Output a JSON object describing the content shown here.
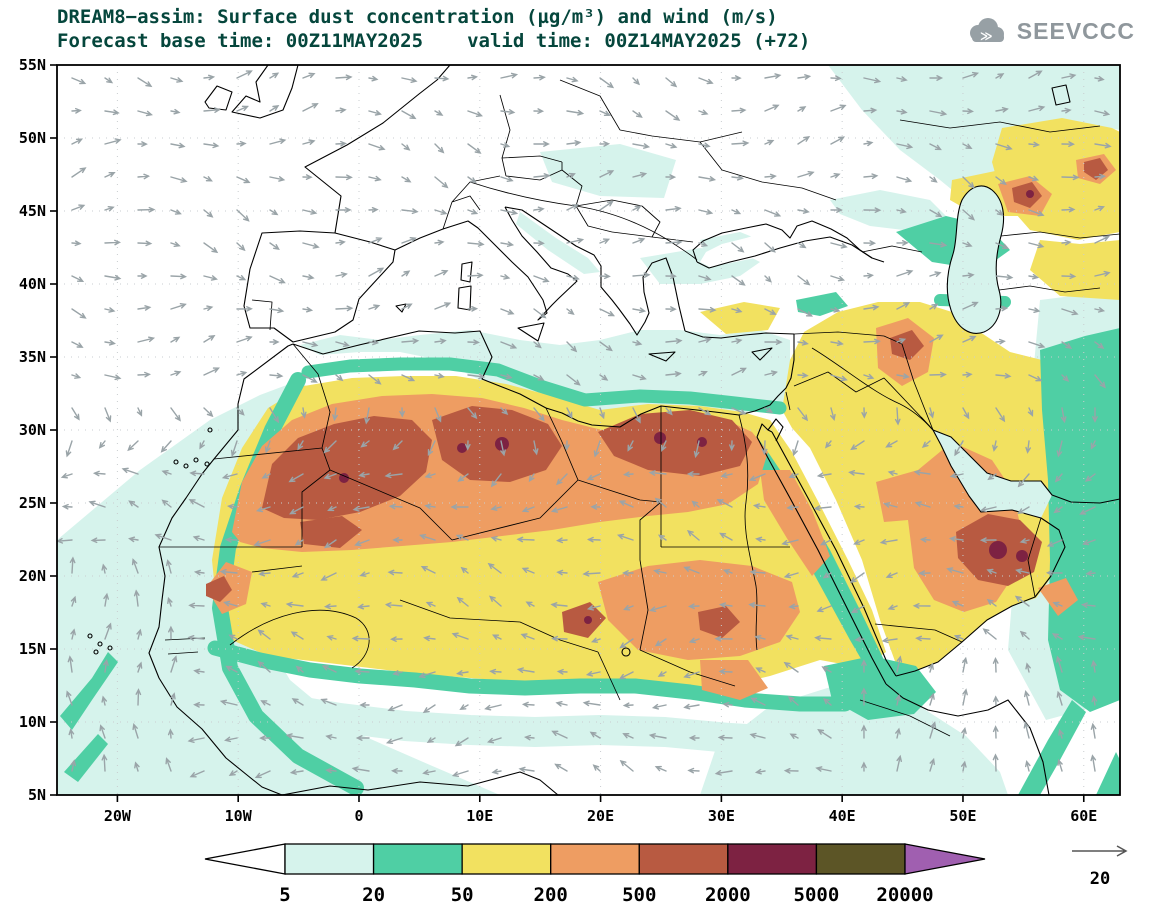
{
  "header": {
    "title": "DREAM8−assim: Surface dust concentration (µg/m³) and wind (m/s)",
    "subtitle": {
      "base_label": "Forecast base time:",
      "base_time": "00Z11MAY2025",
      "valid_label": "valid time:",
      "valid_time": "00Z14MAY2025",
      "lead": "(+72)"
    },
    "logo_text": "SEEVCCC"
  },
  "chart_data": {
    "type": "heatmap",
    "title": "DREAM8−assim: Surface dust concentration (µg/m³) and wind (m/s)",
    "model": "DREAM8−assim",
    "variable": "Surface dust concentration",
    "units": "µg/m³",
    "wind_units": "m/s",
    "forecast_base_time": "00Z11MAY2025",
    "valid_time": "00Z14MAY2025",
    "lead": "+72",
    "x_axis": {
      "ticks": [
        "20W",
        "10W",
        "0",
        "10E",
        "20E",
        "30E",
        "40E",
        "50E",
        "60E"
      ],
      "lon_values": [
        -20,
        -10,
        0,
        10,
        20,
        30,
        40,
        50,
        60
      ],
      "range_deg": [
        -25,
        63
      ]
    },
    "y_axis": {
      "ticks": [
        "5N",
        "10N",
        "15N",
        "20N",
        "25N",
        "30N",
        "35N",
        "40N",
        "45N",
        "50N",
        "55N"
      ],
      "lat_values": [
        5,
        10,
        15,
        20,
        25,
        30,
        35,
        40,
        45,
        50,
        55
      ],
      "range_deg": [
        5,
        55
      ]
    },
    "colorbar": {
      "levels": [
        "5",
        "20",
        "50",
        "200",
        "500",
        "2000",
        "5000",
        "20000"
      ],
      "colors": [
        "#ffffff",
        "#d6f3ec",
        "#4fcfa4",
        "#f2e160",
        "#ee9d62",
        "#b85a41",
        "#7d2242",
        "#5c5526",
        "#a05fb0"
      ],
      "description": "dust concentration bands (µg/m³)",
      "orientation": "horizontal"
    },
    "wind_reference": {
      "value": "20",
      "units": "m/s"
    },
    "grid": "dotted graticule every 5° lat / 10° lon",
    "legend_position": "bottom"
  }
}
